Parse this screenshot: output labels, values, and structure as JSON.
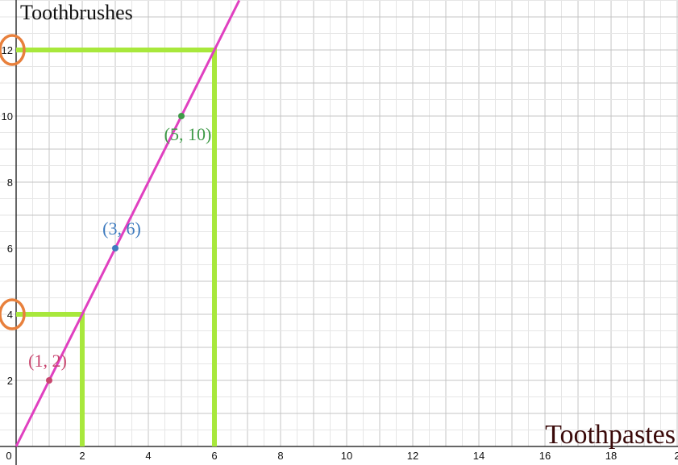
{
  "chart_data": {
    "type": "scatter",
    "xlabel": "Toothpastes",
    "ylabel": "Toothbrushes",
    "xlim": [
      0,
      20
    ],
    "ylim": [
      0,
      13.5
    ],
    "x_ticks": [
      "0",
      "2",
      "4",
      "6",
      "8",
      "10",
      "12",
      "14",
      "16",
      "18",
      "2"
    ],
    "y_ticks": [
      {
        "value": 2,
        "label": "2"
      },
      {
        "value": 4,
        "label": "4"
      },
      {
        "value": 6,
        "label": "6"
      },
      {
        "value": 8,
        "label": "8"
      },
      {
        "value": 10,
        "label": "10"
      },
      {
        "value": 12,
        "label": "12"
      }
    ],
    "grid": true,
    "line": {
      "slope": 2,
      "intercept": 0,
      "x_range": [
        0,
        6.75
      ],
      "color": "#e040c0"
    },
    "points": [
      {
        "x": 1,
        "y": 2,
        "label": "(1, 2)",
        "color": "#c8456e"
      },
      {
        "x": 3,
        "y": 6,
        "label": "(3, 6)",
        "color": "#3e7bbf"
      },
      {
        "x": 5,
        "y": 10,
        "label": "(5, 10)",
        "color": "#3f9a48"
      }
    ],
    "guides": [
      {
        "x": 2,
        "y": 4
      },
      {
        "x": 6,
        "y": 12
      }
    ],
    "guide_color": "#a8e83c",
    "highlight_color": "#e8803c",
    "highlighted_y_ticks": [
      4,
      12
    ]
  }
}
